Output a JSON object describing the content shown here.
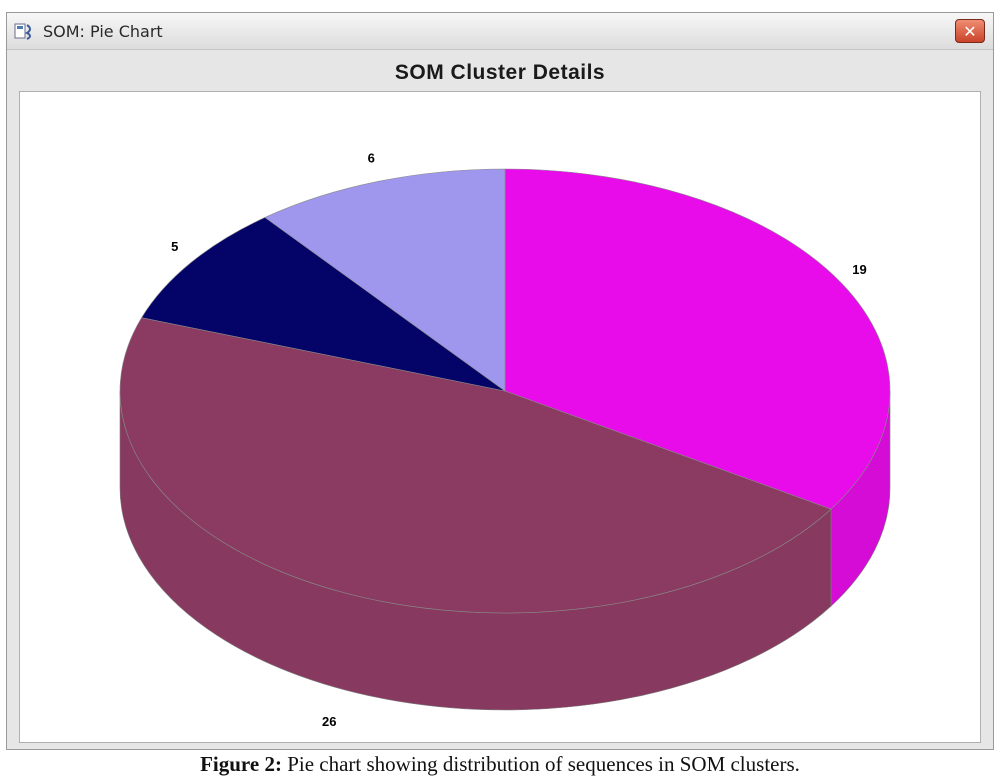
{
  "window": {
    "title": "SOM: Pie Chart",
    "close_label": "✕"
  },
  "chart_data": {
    "type": "pie",
    "title": "SOM Cluster Details",
    "slices": [
      {
        "value": 19,
        "color": "#e70ce9"
      },
      {
        "value": 26,
        "color": "#8b3a61"
      },
      {
        "value": 5,
        "color": "#030368"
      },
      {
        "value": 6,
        "color": "#9e97ed"
      }
    ],
    "start": "top",
    "direction": "clockwise",
    "style": "3d"
  },
  "caption": {
    "label": "Figure 2:",
    "text": "Pie chart showing distribution of sequences in SOM clusters."
  }
}
